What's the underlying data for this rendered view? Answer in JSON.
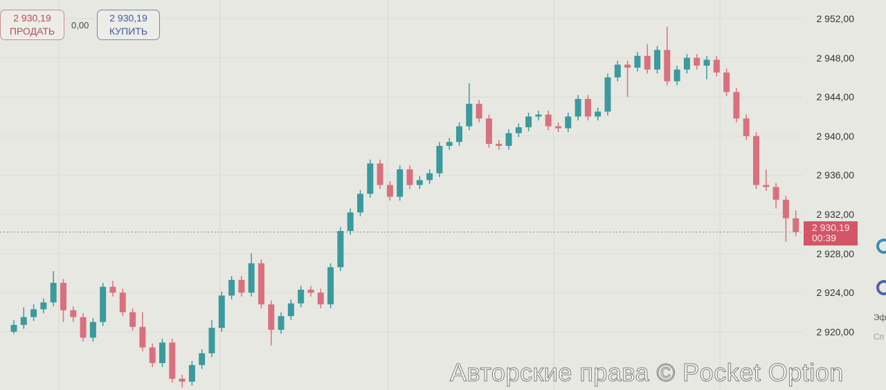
{
  "trade_panel": {
    "sell_price": "2 930,19",
    "sell_label": "ПРОДАТЬ",
    "spread": "0,00",
    "buy_price": "2 930,19",
    "buy_label": "КУПИТЬ"
  },
  "current_price": {
    "value": "2 930,19",
    "timer": "00:39"
  },
  "watermark": "Авторские права © Pocket Option",
  "side_panel": {
    "label_1": "Эф",
    "label_2": "Сп"
  },
  "colors": {
    "bullish": "#3a9a9e",
    "bearish": "#d9707e",
    "background": "#e8e8e2",
    "price_tag": "#d35566"
  },
  "chart_data": {
    "type": "candlestick",
    "ylim": [
      2914,
      2952.5
    ],
    "y_ticks": [
      "2 952,00",
      "2 948,00",
      "2 944,00",
      "2 940,00",
      "2 936,00",
      "2 932,00",
      "2 928,00",
      "2 924,00",
      "2 920,00"
    ],
    "y_tick_values": [
      2952,
      2948,
      2944,
      2940,
      2936,
      2932,
      2928,
      2924,
      2920
    ],
    "current_price_line": 2930.19,
    "candles_ohlc": [
      [
        2920.0,
        2921.2,
        2919.8,
        2920.7
      ],
      [
        2920.7,
        2922.5,
        2920.3,
        2921.5
      ],
      [
        2921.5,
        2922.8,
        2921.1,
        2922.3
      ],
      [
        2922.3,
        2923.4,
        2921.9,
        2923.0
      ],
      [
        2923.0,
        2926.2,
        2922.6,
        2925.0
      ],
      [
        2925.0,
        2925.4,
        2921.0,
        2922.2
      ],
      [
        2922.2,
        2922.6,
        2921.0,
        2921.5
      ],
      [
        2921.5,
        2921.9,
        2919.0,
        2919.4
      ],
      [
        2919.4,
        2921.4,
        2919.0,
        2921.0
      ],
      [
        2921.0,
        2925.0,
        2920.6,
        2924.6
      ],
      [
        2924.6,
        2925.2,
        2923.6,
        2924.0
      ],
      [
        2924.0,
        2924.4,
        2921.6,
        2922.0
      ],
      [
        2922.0,
        2922.4,
        2920.1,
        2920.5
      ],
      [
        2920.5,
        2922.0,
        2918.0,
        2918.4
      ],
      [
        2918.4,
        2918.8,
        2916.4,
        2916.8
      ],
      [
        2916.8,
        2919.3,
        2916.4,
        2918.9
      ],
      [
        2918.9,
        2919.3,
        2914.8,
        2915.2
      ],
      [
        2915.2,
        2915.6,
        2914.3,
        2914.9
      ],
      [
        2914.9,
        2917.0,
        2914.5,
        2916.6
      ],
      [
        2916.6,
        2918.2,
        2916.2,
        2917.8
      ],
      [
        2917.8,
        2921.2,
        2917.4,
        2920.4
      ],
      [
        2920.4,
        2924.1,
        2920.0,
        2923.7
      ],
      [
        2923.7,
        2925.7,
        2923.3,
        2925.3
      ],
      [
        2925.3,
        2925.7,
        2923.6,
        2924.0
      ],
      [
        2924.0,
        2928.0,
        2923.6,
        2927.0
      ],
      [
        2927.0,
        2927.4,
        2922.4,
        2922.8
      ],
      [
        2922.8,
        2923.2,
        2918.6,
        2920.2
      ],
      [
        2920.2,
        2922.0,
        2919.8,
        2921.6
      ],
      [
        2921.6,
        2923.3,
        2921.2,
        2922.9
      ],
      [
        2922.9,
        2924.7,
        2922.5,
        2924.3
      ],
      [
        2924.3,
        2924.7,
        2923.6,
        2924.0
      ],
      [
        2924.0,
        2924.4,
        2922.4,
        2922.8
      ],
      [
        2922.8,
        2927.0,
        2922.4,
        2926.6
      ],
      [
        2926.6,
        2930.7,
        2926.2,
        2930.3
      ],
      [
        2930.3,
        2932.6,
        2929.9,
        2932.2
      ],
      [
        2932.2,
        2934.5,
        2931.8,
        2934.1
      ],
      [
        2934.1,
        2937.6,
        2933.7,
        2937.2
      ],
      [
        2937.2,
        2937.6,
        2934.6,
        2935.0
      ],
      [
        2935.0,
        2935.4,
        2933.4,
        2933.8
      ],
      [
        2933.8,
        2937.0,
        2933.4,
        2936.6
      ],
      [
        2936.6,
        2937.0,
        2934.6,
        2935.0
      ],
      [
        2935.0,
        2935.9,
        2934.6,
        2935.5
      ],
      [
        2935.5,
        2936.6,
        2935.1,
        2936.2
      ],
      [
        2936.2,
        2939.4,
        2935.8,
        2939.0
      ],
      [
        2939.0,
        2939.8,
        2938.6,
        2939.4
      ],
      [
        2939.4,
        2941.4,
        2939.0,
        2941.0
      ],
      [
        2941.0,
        2945.4,
        2940.6,
        2943.3
      ],
      [
        2943.3,
        2943.7,
        2941.4,
        2941.8
      ],
      [
        2941.8,
        2942.2,
        2938.8,
        2939.2
      ],
      [
        2939.2,
        2939.6,
        2938.6,
        2939.0
      ],
      [
        2939.0,
        2940.7,
        2938.6,
        2940.3
      ],
      [
        2940.3,
        2941.3,
        2939.9,
        2940.9
      ],
      [
        2940.9,
        2942.4,
        2940.5,
        2942.0
      ],
      [
        2942.0,
        2942.6,
        2941.6,
        2942.2
      ],
      [
        2942.2,
        2942.6,
        2940.6,
        2941.0
      ],
      [
        2941.0,
        2941.4,
        2940.4,
        2940.8
      ],
      [
        2940.8,
        2942.4,
        2940.4,
        2942.0
      ],
      [
        2942.0,
        2944.2,
        2941.6,
        2943.8
      ],
      [
        2943.8,
        2944.2,
        2941.6,
        2942.0
      ],
      [
        2942.0,
        2942.9,
        2941.6,
        2942.5
      ],
      [
        2942.5,
        2946.4,
        2942.1,
        2946.0
      ],
      [
        2946.0,
        2947.7,
        2945.6,
        2947.3
      ],
      [
        2947.3,
        2947.7,
        2944.0,
        2947.0
      ],
      [
        2947.0,
        2948.6,
        2946.6,
        2948.2
      ],
      [
        2948.2,
        2949.4,
        2946.4,
        2946.8
      ],
      [
        2946.8,
        2949.2,
        2946.4,
        2948.8
      ],
      [
        2948.8,
        2951.2,
        2945.2,
        2945.6
      ],
      [
        2945.6,
        2947.2,
        2945.2,
        2946.8
      ],
      [
        2946.8,
        2948.4,
        2946.4,
        2948.0
      ],
      [
        2948.0,
        2948.4,
        2946.8,
        2947.2
      ],
      [
        2947.2,
        2948.2,
        2945.8,
        2947.8
      ],
      [
        2947.8,
        2948.2,
        2946.1,
        2946.5
      ],
      [
        2946.5,
        2946.9,
        2944.1,
        2944.5
      ],
      [
        2944.5,
        2944.9,
        2941.4,
        2941.8
      ],
      [
        2941.8,
        2942.2,
        2939.6,
        2940.0
      ],
      [
        2940.0,
        2940.4,
        2934.6,
        2935.0
      ],
      [
        2935.0,
        2936.6,
        2934.4,
        2934.8
      ],
      [
        2934.8,
        2935.2,
        2932.6,
        2933.5
      ],
      [
        2933.5,
        2933.9,
        2929.2,
        2931.6
      ],
      [
        2931.6,
        2932.4,
        2929.8,
        2930.2
      ]
    ]
  }
}
